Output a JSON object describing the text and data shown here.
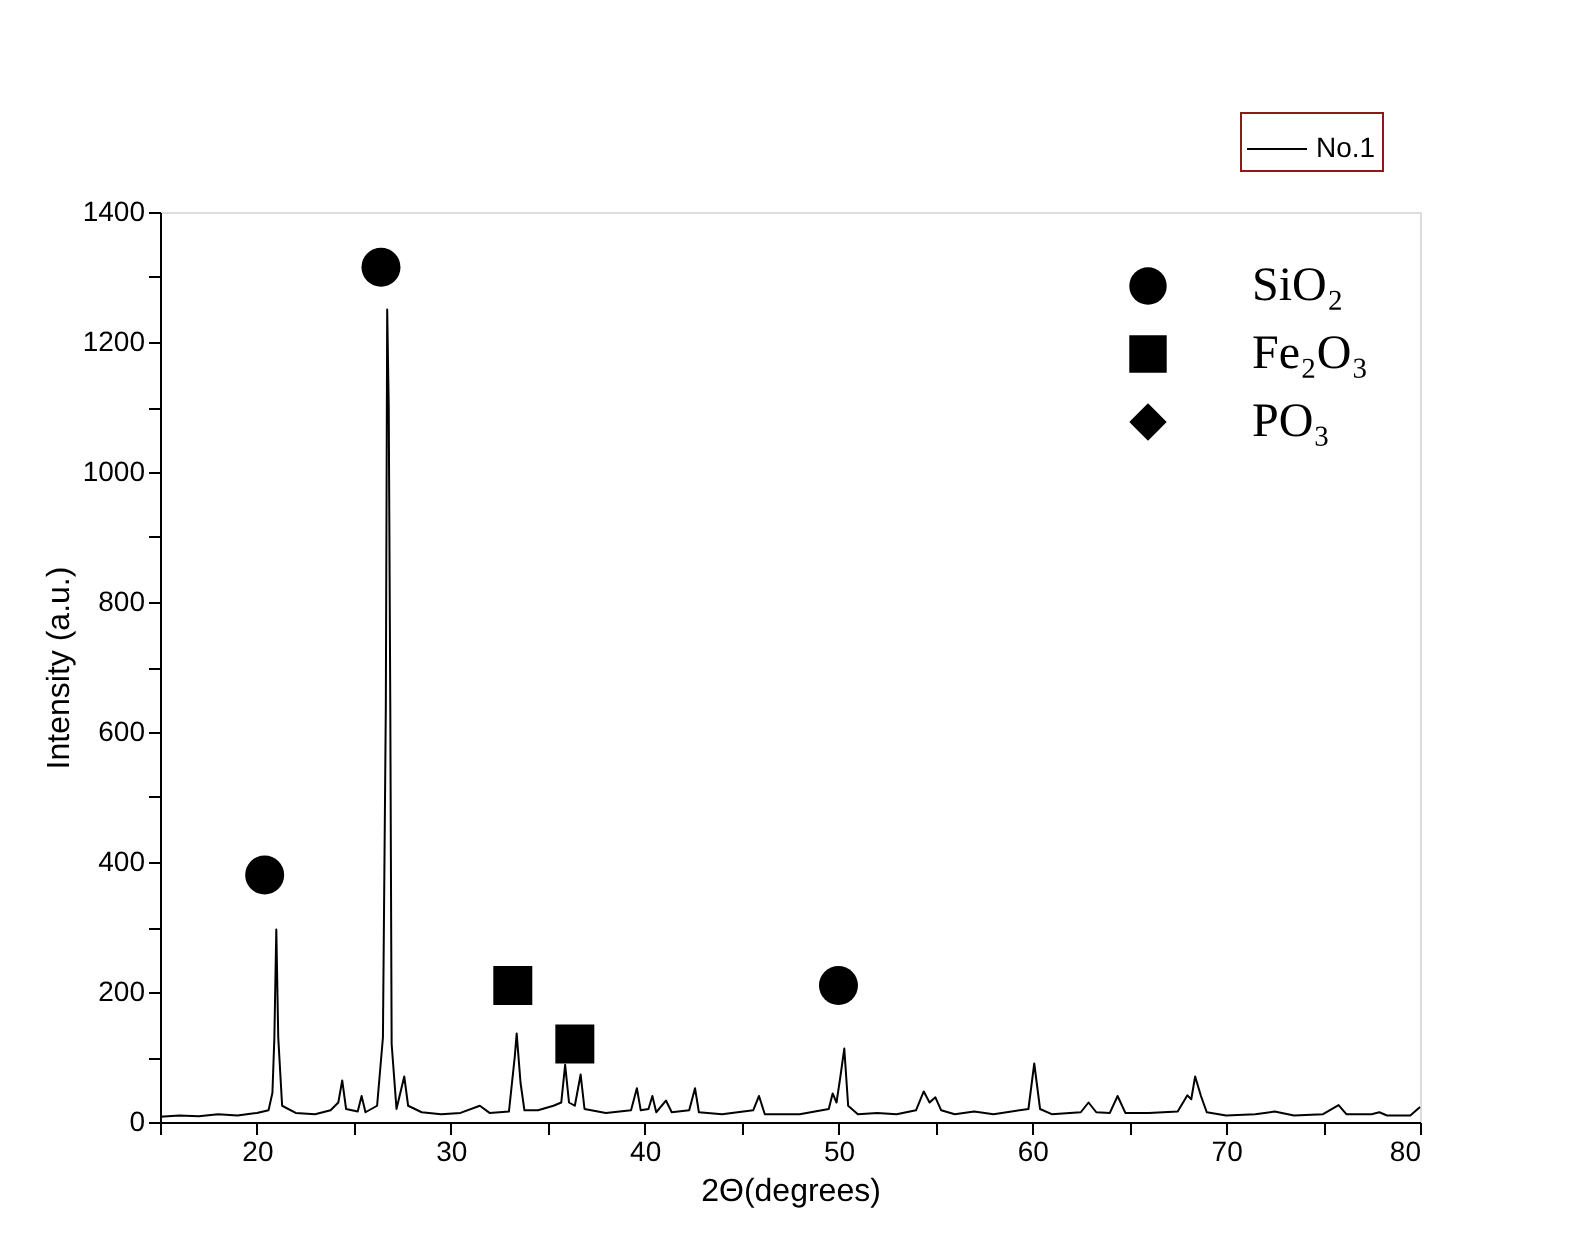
{
  "chart_data": {
    "type": "line",
    "xlabel": "2Θ(degrees)",
    "ylabel": "Intensity (a.u.)",
    "xlim": [
      15,
      80
    ],
    "xticks": [
      {
        "value": 15,
        "label": null
      },
      20,
      {
        "value": 25,
        "label": null
      },
      30,
      {
        "value": 35,
        "label": null
      },
      40,
      {
        "value": 45,
        "label": null
      },
      50,
      {
        "value": 55,
        "label": null
      },
      60,
      {
        "value": 65,
        "label": null
      },
      70,
      {
        "value": 75,
        "label": null
      },
      80
    ],
    "ylim": [
      0,
      1400
    ],
    "yticks": [
      0,
      {
        "value": 100,
        "label": null
      },
      200,
      {
        "value": 300,
        "label": null
      },
      400,
      {
        "value": 500,
        "label": null
      },
      600,
      {
        "value": 700,
        "label": null
      },
      800,
      {
        "value": 900,
        "label": null
      },
      1000,
      {
        "value": 1100,
        "label": null
      },
      1200,
      {
        "value": 1300,
        "label": null
      },
      1400
    ],
    "legend": "top right",
    "grid": false,
    "series": [
      {
        "name": "No.1",
        "color": "#000000",
        "line_style": "solid",
        "x": [
          15,
          16,
          17,
          18,
          19,
          20,
          20.6,
          20.8,
          20.9,
          21.0,
          21.1,
          21.3,
          22,
          23,
          23.8,
          24.2,
          24.4,
          24.6,
          25.2,
          25.4,
          25.6,
          26.2,
          26.5,
          26.65,
          26.72,
          26.8,
          26.88,
          26.95,
          27.2,
          27.6,
          27.8,
          28.5,
          29.5,
          30.5,
          31.5,
          32,
          33,
          33.3,
          33.4,
          33.6,
          33.8,
          34.5,
          35.3,
          35.7,
          35.9,
          36.1,
          36.4,
          36.7,
          36.9,
          38,
          39.3,
          39.6,
          39.8,
          40.2,
          40.4,
          40.6,
          41.1,
          41.4,
          42.3,
          42.6,
          42.8,
          44,
          45.6,
          45.9,
          46.2,
          48,
          49.5,
          49.7,
          49.9,
          50.1,
          50.3,
          50.5,
          51,
          52,
          53,
          54,
          54.4,
          54.7,
          55.0,
          55.3,
          56,
          57,
          58,
          59.8,
          60.1,
          60.4,
          61,
          62.5,
          62.9,
          63.3,
          64,
          64.4,
          64.8,
          66,
          67.5,
          68.0,
          68.2,
          68.4,
          68.7,
          69,
          70,
          71.5,
          72.5,
          73.5,
          75,
          75.8,
          76.2,
          77.5,
          77.9,
          78.3,
          79.5,
          80
        ],
        "values": [
          8,
          10,
          9,
          12,
          10,
          14,
          18,
          45,
          130,
          296,
          130,
          25,
          14,
          12,
          18,
          30,
          64,
          20,
          16,
          40,
          15,
          25,
          130,
          640,
          1250,
          1100,
          640,
          120,
          20,
          70,
          25,
          15,
          12,
          14,
          25,
          14,
          16,
          100,
          136,
          60,
          18,
          18,
          25,
          30,
          88,
          30,
          25,
          73,
          20,
          14,
          18,
          52,
          18,
          20,
          40,
          15,
          33,
          15,
          18,
          52,
          15,
          12,
          18,
          40,
          12,
          12,
          20,
          44,
          30,
          70,
          113,
          25,
          12,
          14,
          12,
          18,
          47,
          30,
          38,
          18,
          12,
          16,
          12,
          20,
          90,
          20,
          12,
          15,
          30,
          15,
          14,
          40,
          14,
          14,
          16,
          41,
          35,
          70,
          40,
          15,
          10,
          12,
          16,
          10,
          12,
          26,
          12,
          12,
          15,
          10,
          10,
          23
        ]
      },
      {
        "name": "SiO₂",
        "type": "scatter",
        "marker": "circle",
        "color": "#000000",
        "x": [
          20.4,
          26.4,
          50.0
        ],
        "values": [
          380,
          1315,
          210
        ]
      },
      {
        "name": "Fe₂O₃",
        "type": "scatter",
        "marker": "square",
        "color": "#000000",
        "x": [
          33.2,
          36.4
        ],
        "values": [
          210,
          120
        ]
      },
      {
        "name": "PO₃",
        "type": "scatter",
        "marker": "diamond",
        "color": "#000000"
      }
    ]
  }
}
